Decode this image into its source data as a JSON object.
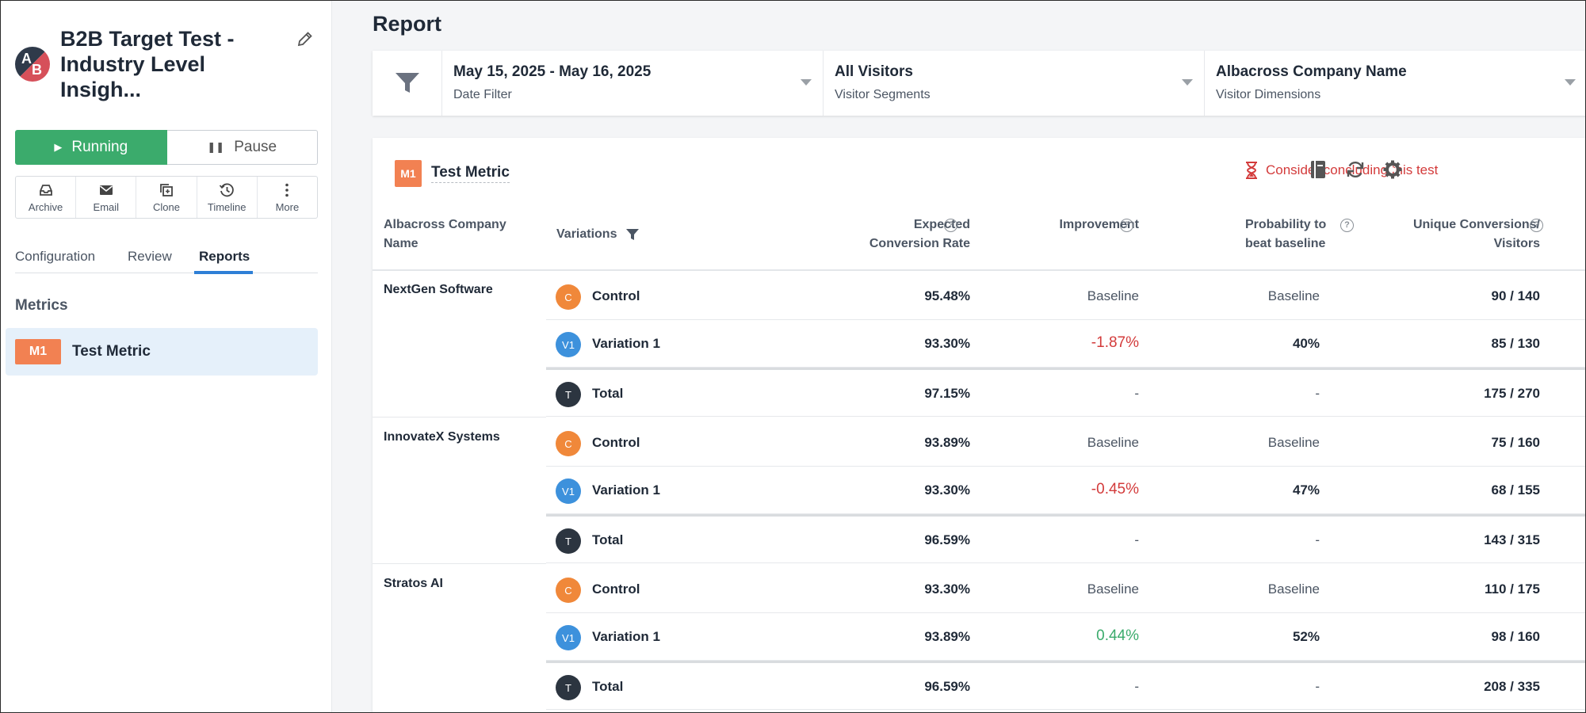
{
  "sidebar": {
    "logo_letters": {
      "a": "A",
      "b": "B"
    },
    "test_title": "B2B Target Test - Industry Level Insigh...",
    "running_label": "Running",
    "pause_label": "Pause",
    "actions": [
      {
        "label": "Archive",
        "icon": "archive-icon"
      },
      {
        "label": "Email",
        "icon": "email-icon"
      },
      {
        "label": "Clone",
        "icon": "clone-icon"
      },
      {
        "label": "Timeline",
        "icon": "timeline-icon"
      },
      {
        "label": "More",
        "icon": "more-icon"
      }
    ],
    "tabs": [
      "Configuration",
      "Review",
      "Reports"
    ],
    "active_tab": "Reports",
    "metrics_heading": "Metrics",
    "metric_badge": "M1",
    "metric_label": "Test Metric"
  },
  "main": {
    "report_title": "Report",
    "filters": [
      {
        "value": "May 15, 2025 - May 16, 2025",
        "label": "Date Filter"
      },
      {
        "value": "All Visitors",
        "label": "Visitor Segments"
      },
      {
        "value": "Albacross Company Name",
        "label": "Visitor Dimensions"
      }
    ],
    "card": {
      "badge": "M1",
      "metric_name": "Test Metric",
      "conclude_text": "Consider concluding this test"
    },
    "headers": {
      "company": "Albacross Company Name",
      "variations": "Variations",
      "rate": "Expected Conversion Rate",
      "improvement": "Improvement",
      "probability": "Probability to beat baseline",
      "conversions": "Unique Conversions/ Visitors"
    },
    "groups": [
      {
        "company": "NextGen Software",
        "rows": [
          {
            "badge": "C",
            "name": "Control",
            "rate": "95.48%",
            "improvement": "Baseline",
            "probability": "Baseline",
            "conversions": "90 / 140"
          },
          {
            "badge": "V1",
            "name": "Variation 1",
            "rate": "93.30%",
            "improvement": "-1.87%",
            "probability": "40%",
            "conversions": "85 / 130"
          },
          {
            "badge": "T",
            "name": "Total",
            "rate": "97.15%",
            "improvement": "-",
            "probability": "-",
            "conversions": "175 / 270"
          }
        ]
      },
      {
        "company": "InnovateX Systems",
        "rows": [
          {
            "badge": "C",
            "name": "Control",
            "rate": "93.89%",
            "improvement": "Baseline",
            "probability": "Baseline",
            "conversions": "75 / 160"
          },
          {
            "badge": "V1",
            "name": "Variation 1",
            "rate": "93.30%",
            "improvement": "-0.45%",
            "probability": "47%",
            "conversions": "68 / 155"
          },
          {
            "badge": "T",
            "name": "Total",
            "rate": "96.59%",
            "improvement": "-",
            "probability": "-",
            "conversions": "143 / 315"
          }
        ]
      },
      {
        "company": "Stratos AI",
        "rows": [
          {
            "badge": "C",
            "name": "Control",
            "rate": "93.30%",
            "improvement": "Baseline",
            "probability": "Baseline",
            "conversions": "110 / 175"
          },
          {
            "badge": "V1",
            "name": "Variation 1",
            "rate": "93.89%",
            "improvement": "0.44%",
            "probability": "52%",
            "conversions": "98 / 160"
          },
          {
            "badge": "T",
            "name": "Total",
            "rate": "96.59%",
            "improvement": "-",
            "probability": "-",
            "conversions": "208 / 335"
          }
        ]
      }
    ]
  },
  "colors": {
    "running_green": "#3bab6c",
    "negative_red": "#d33b3b",
    "positive_green": "#3bab6c",
    "metric_orange": "#f28152",
    "control_orange": "#f0883a",
    "variation_blue": "#3d91dc",
    "total_dark": "#2c3540",
    "active_tab_blue": "#2e7fd6"
  }
}
